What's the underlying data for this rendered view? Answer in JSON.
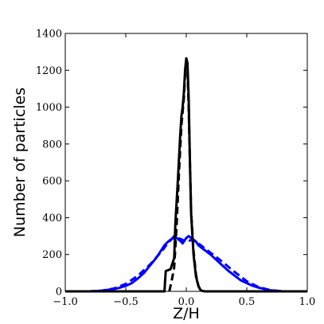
{
  "chart_data": {
    "type": "line",
    "title": "",
    "xlabel": "Z/H",
    "ylabel": "Number of particles",
    "xlim": [
      -1.0,
      1.0
    ],
    "ylim": [
      0,
      1400
    ],
    "grid": false,
    "legend": "none",
    "x_ticks": [
      -1.0,
      -0.5,
      0.0,
      0.5,
      1.0
    ],
    "x_tick_labels": [
      "−1.0",
      "−0.5",
      "0.0",
      "0.5",
      "1.0"
    ],
    "y_ticks": [
      0,
      200,
      400,
      600,
      800,
      1000,
      1200,
      1400
    ],
    "y_tick_labels": [
      "0",
      "200",
      "400",
      "600",
      "800",
      "1000",
      "1200",
      "1400"
    ],
    "series": [
      {
        "color": "#0000ff",
        "linestyle": "solid",
        "x": [
          -1.0,
          -0.8,
          -0.7,
          -0.65,
          -0.6,
          -0.55,
          -0.5,
          -0.45,
          -0.4,
          -0.35,
          -0.3,
          -0.25,
          -0.2,
          -0.18,
          -0.15,
          -0.12,
          -0.1,
          -0.08,
          -0.05,
          -0.03,
          0.0,
          0.02,
          0.05,
          0.08,
          0.1,
          0.12,
          0.15,
          0.2,
          0.25,
          0.3,
          0.35,
          0.4,
          0.45,
          0.5,
          0.55,
          0.6,
          0.65,
          0.7,
          0.8,
          1.0
        ],
        "y": [
          0,
          0,
          3,
          8,
          12,
          20,
          30,
          45,
          70,
          100,
          140,
          180,
          230,
          250,
          270,
          285,
          300,
          290,
          275,
          260,
          290,
          300,
          285,
          270,
          250,
          240,
          225,
          200,
          170,
          140,
          110,
          85,
          60,
          45,
          30,
          20,
          12,
          5,
          0,
          0
        ]
      },
      {
        "color": "#0000ff",
        "linestyle": "dashed",
        "x": [
          -1.0,
          -0.8,
          -0.7,
          -0.6,
          -0.5,
          -0.4,
          -0.3,
          -0.2,
          -0.15,
          -0.1,
          -0.05,
          0.0,
          0.05,
          0.1,
          0.15,
          0.2,
          0.3,
          0.4,
          0.5,
          0.6,
          0.7,
          0.8,
          1.0
        ],
        "y": [
          0,
          0,
          4,
          15,
          40,
          85,
          145,
          220,
          265,
          295,
          285,
          270,
          280,
          260,
          235,
          210,
          160,
          105,
          55,
          22,
          6,
          0,
          0
        ]
      },
      {
        "color": "#000000",
        "linestyle": "solid",
        "x": [
          -1.0,
          -0.18,
          -0.17,
          -0.13,
          -0.1,
          -0.09,
          -0.07,
          -0.05,
          -0.04,
          -0.03,
          -0.02,
          -0.01,
          0.0,
          0.01,
          0.02,
          0.03,
          0.04,
          0.06,
          0.08,
          0.1,
          0.12,
          0.15,
          1.0
        ],
        "y": [
          0,
          0,
          110,
          120,
          180,
          370,
          600,
          850,
          950,
          1000,
          1080,
          1200,
          1265,
          1240,
          1050,
          700,
          420,
          200,
          80,
          30,
          5,
          0,
          0
        ]
      },
      {
        "color": "#000000",
        "linestyle": "dashed",
        "x": [
          -0.14,
          -0.12,
          -0.1,
          -0.08,
          -0.06,
          -0.04,
          -0.02,
          -0.01,
          0.0,
          0.01,
          0.02,
          0.03,
          0.04,
          0.06,
          0.08,
          0.1,
          0.12
        ],
        "y": [
          0,
          60,
          130,
          350,
          650,
          900,
          1050,
          1180,
          1230,
          1200,
          1000,
          700,
          430,
          220,
          90,
          30,
          0
        ]
      }
    ]
  }
}
